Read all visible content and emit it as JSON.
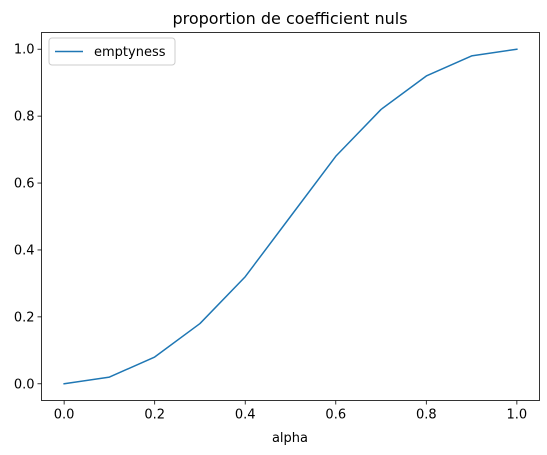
{
  "chart_data": {
    "type": "line",
    "title": "proportion de coefficient nuls",
    "xlabel": "alpha",
    "ylabel": "",
    "xlim": [
      -0.05,
      1.05
    ],
    "ylim": [
      -0.05,
      1.05
    ],
    "xticks": [
      "0.0",
      "0.2",
      "0.4",
      "0.6",
      "0.8",
      "1.0"
    ],
    "yticks": [
      "0.0",
      "0.2",
      "0.4",
      "0.6",
      "0.8",
      "1.0"
    ],
    "grid": false,
    "legend_position": "upper-left",
    "series": [
      {
        "name": "emptyness",
        "color": "#1f77b4",
        "x": [
          0.0,
          0.1,
          0.2,
          0.3,
          0.4,
          0.5,
          0.6,
          0.7,
          0.8,
          0.9,
          1.0
        ],
        "y": [
          0.0,
          0.02,
          0.08,
          0.18,
          0.32,
          0.5,
          0.68,
          0.82,
          0.92,
          0.98,
          1.0
        ]
      }
    ]
  }
}
